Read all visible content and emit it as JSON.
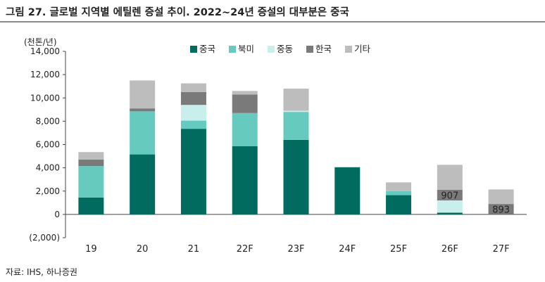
{
  "title": "그림 27. 글로벌 지역별 에틸렌 증설 추이. 2022~24년 증설의 대부분은 중국",
  "source": "자료: IHS, 하나증권",
  "chart_data": {
    "type": "bar",
    "stacked": true,
    "unit_label": "(천톤/년)",
    "categories": [
      "19",
      "20",
      "21",
      "22F",
      "23F",
      "24F",
      "25F",
      "26F",
      "27F"
    ],
    "series": [
      {
        "name": "중국",
        "color": "#006b5e",
        "values": [
          1450,
          5150,
          7350,
          5850,
          6400,
          4050,
          1650,
          150,
          0
        ]
      },
      {
        "name": "북미",
        "color": "#66cbbe",
        "values": [
          2700,
          3700,
          700,
          2850,
          2400,
          0,
          350,
          0,
          0
        ]
      },
      {
        "name": "중동",
        "color": "#c8efec",
        "values": [
          0,
          0,
          1350,
          0,
          100,
          0,
          0,
          1050,
          0
        ]
      },
      {
        "name": "한국",
        "color": "#7a7a7a",
        "values": [
          550,
          250,
          1100,
          1600,
          0,
          0,
          0,
          907,
          893
        ]
      },
      {
        "name": "기타",
        "color": "#bdbdbd",
        "values": [
          650,
          2400,
          750,
          300,
          1900,
          0,
          750,
          2150,
          1250
        ]
      }
    ],
    "data_labels": [
      {
        "category": "26F",
        "series": "한국",
        "text": "907"
      },
      {
        "category": "27F",
        "series": "한국",
        "text": "893"
      }
    ],
    "ylim": [
      -2000,
      14000
    ],
    "yticks": [
      -2000,
      0,
      2000,
      4000,
      6000,
      8000,
      10000,
      12000,
      14000
    ],
    "ytick_labels": [
      "(2,000)",
      "0",
      "2,000",
      "4,000",
      "6,000",
      "8,000",
      "10,000",
      "12,000",
      "14,000"
    ],
    "legend_position": "top-center",
    "grid": false
  }
}
